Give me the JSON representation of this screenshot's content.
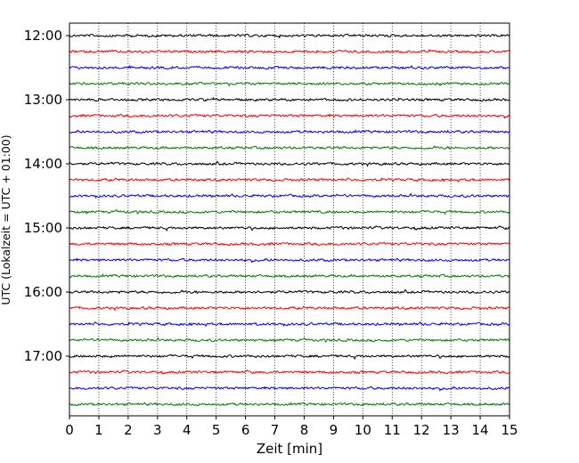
{
  "chart_data": {
    "type": "line",
    "title": "",
    "xlabel": "Zeit  [min]",
    "ylabel": "UTC (Lokalzeit = UTC + 01:00)",
    "xlim": [
      0,
      15
    ],
    "x_ticks": [
      0,
      1,
      2,
      3,
      4,
      5,
      6,
      7,
      8,
      9,
      10,
      11,
      12,
      13,
      14,
      15
    ],
    "y_ticks": [
      "12:00",
      "13:00",
      "14:00",
      "15:00",
      "16:00",
      "17:00"
    ],
    "grid": "vertical dotted",
    "trace_interval_minutes": 15,
    "trace_colors": [
      "#000000",
      "#ff0000",
      "#0000ff",
      "#007f00"
    ],
    "series": [
      {
        "start": "12:00",
        "color": "#000000"
      },
      {
        "start": "12:15",
        "color": "#ff0000"
      },
      {
        "start": "12:30",
        "color": "#0000ff"
      },
      {
        "start": "12:45",
        "color": "#007f00"
      },
      {
        "start": "13:00",
        "color": "#000000"
      },
      {
        "start": "13:15",
        "color": "#ff0000"
      },
      {
        "start": "13:30",
        "color": "#0000ff"
      },
      {
        "start": "13:45",
        "color": "#007f00"
      },
      {
        "start": "14:00",
        "color": "#000000"
      },
      {
        "start": "14:15",
        "color": "#ff0000"
      },
      {
        "start": "14:30",
        "color": "#0000ff"
      },
      {
        "start": "14:45",
        "color": "#007f00"
      },
      {
        "start": "15:00",
        "color": "#000000"
      },
      {
        "start": "15:15",
        "color": "#ff0000"
      },
      {
        "start": "15:30",
        "color": "#0000ff"
      },
      {
        "start": "15:45",
        "color": "#007f00"
      },
      {
        "start": "16:00",
        "color": "#000000"
      },
      {
        "start": "16:15",
        "color": "#ff0000"
      },
      {
        "start": "16:30",
        "color": "#0000ff"
      },
      {
        "start": "16:45",
        "color": "#007f00"
      },
      {
        "start": "17:00",
        "color": "#000000"
      },
      {
        "start": "17:15",
        "color": "#ff0000"
      },
      {
        "start": "17:30",
        "color": "#0000ff"
      },
      {
        "start": "17:45",
        "color": "#007f00"
      }
    ]
  }
}
